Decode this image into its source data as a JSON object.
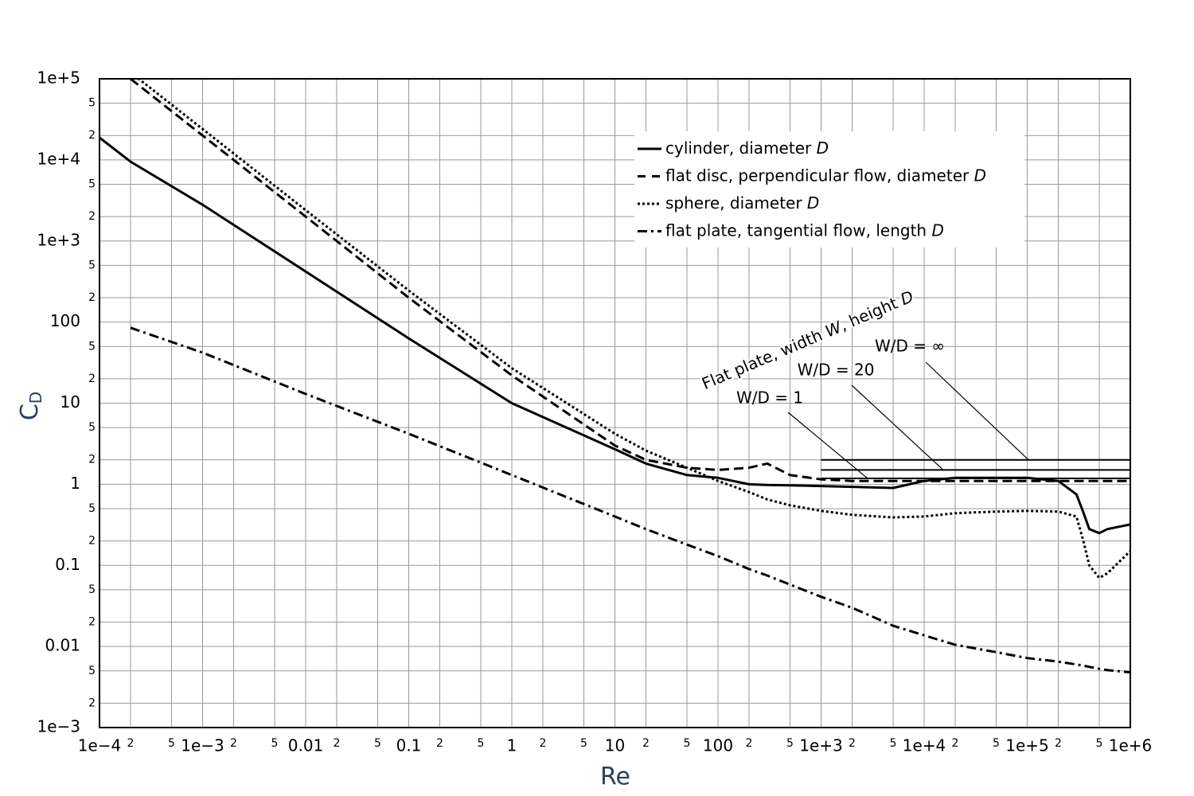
{
  "chart_data": {
    "type": "line",
    "x_label": "Re",
    "y_label": "CD",
    "x_log": true,
    "y_log": true,
    "grid": true,
    "legend_position": "top-right",
    "xlim": [
      0.0001,
      1000000
    ],
    "ylim": [
      0.001,
      100000
    ],
    "xticks": [
      {
        "value": 0.0001,
        "label": "1e−4"
      },
      {
        "value": 0.0002,
        "label": "2"
      },
      {
        "value": 0.0005,
        "label": "5"
      },
      {
        "value": 0.001,
        "label": "1e−3"
      },
      {
        "value": 0.002,
        "label": "2"
      },
      {
        "value": 0.005,
        "label": "5"
      },
      0.01,
      {
        "value": 0.02,
        "label": "2"
      },
      {
        "value": 0.05,
        "label": "5"
      },
      0.1,
      {
        "value": 0.2,
        "label": "2"
      },
      {
        "value": 0.5,
        "label": "5"
      },
      1,
      2,
      5,
      10,
      {
        "value": 20,
        "label": "2"
      },
      {
        "value": 50,
        "label": "5"
      },
      100,
      {
        "value": 200,
        "label": "2"
      },
      {
        "value": 500,
        "label": "5"
      },
      {
        "value": 1000,
        "label": "1e+3"
      },
      {
        "value": 2000,
        "label": "2"
      },
      {
        "value": 5000,
        "label": "5"
      },
      {
        "value": 10000,
        "label": "1e+4"
      },
      {
        "value": 20000,
        "label": "2"
      },
      {
        "value": 50000,
        "label": "5"
      },
      {
        "value": 100000,
        "label": "1e+5"
      },
      {
        "value": 200000,
        "label": "2"
      },
      {
        "value": 500000,
        "label": "5"
      },
      {
        "value": 1000000,
        "label": "1e+6"
      }
    ],
    "yticks": [
      {
        "value": 0.001,
        "label": "1e−3"
      },
      {
        "value": 0.002,
        "label": "2"
      },
      {
        "value": 0.005,
        "label": "5"
      },
      0.01,
      {
        "value": 0.02,
        "label": "2"
      },
      {
        "value": 0.05,
        "label": "5"
      },
      0.1,
      {
        "value": 0.2,
        "label": "2"
      },
      {
        "value": 0.5,
        "label": "5"
      },
      1,
      2,
      5,
      10,
      {
        "value": 20,
        "label": "2"
      },
      {
        "value": 50,
        "label": "5"
      },
      100,
      {
        "value": 200,
        "label": "2"
      },
      {
        "value": 500,
        "label": "5"
      },
      {
        "value": 1000,
        "label": "1e+3"
      },
      {
        "value": 2000,
        "label": "2"
      },
      {
        "value": 5000,
        "label": "5"
      },
      {
        "value": 10000,
        "label": "1e+4"
      },
      {
        "value": 20000,
        "label": "2"
      },
      {
        "value": 50000,
        "label": "5"
      },
      {
        "value": 100000,
        "label": "1e+5"
      }
    ],
    "x": [
      0.0001,
      0.0002,
      0.001,
      0.01,
      0.1,
      1,
      10,
      20,
      50,
      100,
      200,
      300,
      500,
      1000,
      2000,
      5000,
      10000,
      20000,
      50000,
      100000,
      200000,
      300000,
      350000,
      400000,
      500000,
      600000,
      1000000
    ],
    "series": [
      {
        "name": "cylinder, diameter D",
        "color": "#000000",
        "dash": "solid",
        "values": [
          18800,
          9500,
          2800,
          420,
          63,
          10,
          2.7,
          1.8,
          1.3,
          1.2,
          1.0,
          0.98,
          0.97,
          0.95,
          0.93,
          0.9,
          1.1,
          1.2,
          1.2,
          1.2,
          1.1,
          0.75,
          0.45,
          0.28,
          0.25,
          0.28,
          0.32
        ]
      },
      {
        "name": "flat disc, perpendicular flow, diameter D",
        "color": "#000000",
        "dash": "dashed",
        "values": [
          null,
          100000,
          20000,
          2000,
          200,
          22,
          3,
          2,
          1.6,
          1.5,
          1.6,
          1.8,
          1.3,
          1.15,
          1.1,
          1.1,
          1.1,
          1.1,
          1.1,
          1.1,
          1.1,
          1.1,
          1.1,
          1.1,
          1.1,
          1.1,
          1.1
        ]
      },
      {
        "name": "sphere, diameter D",
        "color": "#000000",
        "dash": "dotted",
        "values": [
          null,
          120000,
          24000,
          2400,
          245,
          27,
          4.2,
          2.6,
          1.6,
          1.1,
          0.8,
          0.65,
          0.55,
          0.47,
          0.42,
          0.39,
          0.4,
          0.44,
          0.46,
          0.47,
          0.46,
          0.4,
          0.2,
          0.1,
          0.07,
          0.08,
          0.15
        ]
      },
      {
        "name": "flat plate, tangential flow, length D",
        "color": "#000000",
        "dash": "dashdot",
        "values": [
          null,
          85,
          42,
          13,
          4.2,
          1.3,
          0.4,
          0.28,
          0.18,
          0.13,
          0.09,
          0.075,
          0.058,
          0.041,
          0.03,
          0.018,
          0.0137,
          0.0105,
          0.0085,
          0.0072,
          0.0065,
          0.006,
          0.0058,
          0.0056,
          0.0053,
          0.0051,
          0.0048
        ]
      }
    ],
    "annotation_title": "Flat plate, width W, height D",
    "reference_lines": [
      {
        "text": "W/D = 1",
        "x": [
          1000,
          1000000
        ],
        "y": 1.18
      },
      {
        "text": "W/D = 20",
        "x": [
          1000,
          1000000
        ],
        "y": 1.5
      },
      {
        "text": "W/D = ∞",
        "x": [
          1000,
          1000000
        ],
        "y": 2
      }
    ]
  }
}
